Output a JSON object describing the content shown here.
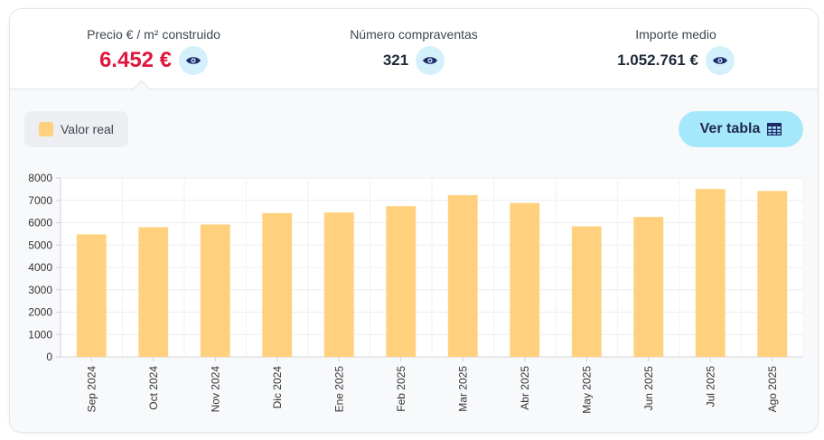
{
  "stats": [
    {
      "label": "Precio € / m² construido",
      "value": "6.452 €",
      "eye_icon": "eye-icon"
    },
    {
      "label": "Número compraventas",
      "value": "321",
      "eye_icon": "eye-icon"
    },
    {
      "label": "Importe medio",
      "value": "1.052.761 €",
      "eye_icon": "eye-icon"
    }
  ],
  "legend": {
    "label": "Valor real",
    "color": "#ffd17f"
  },
  "table_button": {
    "label": "Ver tabla",
    "icon": "table-icon"
  },
  "colors": {
    "accent": "#e0173d",
    "bar": "#ffd17f",
    "button": "#a6e8fb"
  },
  "chart_data": {
    "type": "bar",
    "categories": [
      "Sep 2024",
      "Oct 2024",
      "Nov 2024",
      "Dic 2024",
      "Ene 2025",
      "Feb 2025",
      "Mar 2025",
      "Abr 2025",
      "May 2025",
      "Jun 2025",
      "Jul 2025",
      "Ago 2025"
    ],
    "series": [
      {
        "name": "Valor real",
        "values": [
          5480,
          5800,
          5920,
          6430,
          6460,
          6740,
          7230,
          6880,
          5840,
          6260,
          7510,
          7420
        ]
      }
    ],
    "yticks": [
      0,
      1000,
      2000,
      3000,
      4000,
      5000,
      6000,
      7000,
      8000
    ],
    "ylim": [
      0,
      8000
    ],
    "grid": true,
    "legend_position": "top-left"
  }
}
